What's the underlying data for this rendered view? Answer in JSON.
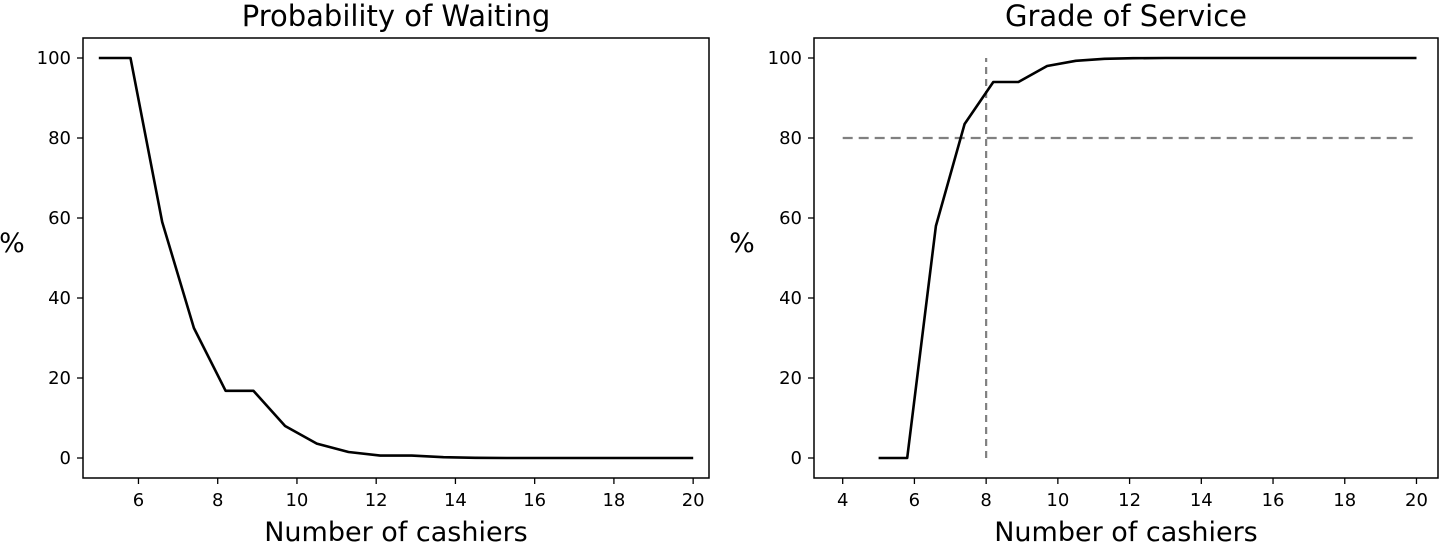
{
  "chart_data": [
    {
      "type": "line",
      "title": "Probability of Waiting",
      "xlabel": "Number of cashiers",
      "ylabel": "%",
      "xlim": [
        4.6,
        20.4
      ],
      "ylim": [
        -5,
        105
      ],
      "xticks": [
        6,
        8,
        10,
        12,
        14,
        16,
        18,
        20
      ],
      "yticks": [
        0,
        20,
        40,
        60,
        80,
        100
      ],
      "grid": false,
      "legend": "none",
      "series": [
        {
          "color": "#000000",
          "x": [
            5,
            5.8,
            6.6,
            7.4,
            8.2,
            8.9,
            9.7,
            10.5,
            11.3,
            12.1,
            12.9,
            13.7,
            14.5,
            15.3,
            16,
            17,
            18,
            19,
            20
          ],
          "y": [
            100,
            100,
            59,
            32.5,
            16.8,
            16.8,
            8,
            3.6,
            1.5,
            0.6,
            0.6,
            0.2,
            0.05,
            0,
            0,
            0,
            0,
            0,
            0
          ]
        }
      ]
    },
    {
      "type": "line",
      "title": "Grade of Service",
      "xlabel": "Number of cashiers",
      "ylabel": "%",
      "xlim": [
        3.2,
        20.6
      ],
      "ylim": [
        -5,
        105
      ],
      "xticks": [
        4,
        6,
        8,
        10,
        12,
        14,
        16,
        18,
        20
      ],
      "yticks": [
        0,
        20,
        40,
        60,
        80,
        100
      ],
      "grid": false,
      "legend": "none",
      "series": [
        {
          "color": "#000000",
          "x": [
            5,
            5.8,
            6.6,
            7.4,
            8.2,
            8.9,
            9.7,
            10.5,
            11.3,
            12.1,
            13,
            14,
            15,
            16,
            17,
            18,
            19,
            20
          ],
          "y": [
            0,
            0,
            58,
            83.5,
            94,
            94,
            98,
            99.3,
            99.8,
            99.95,
            100,
            100,
            100,
            100,
            100,
            100,
            100,
            100
          ]
        }
      ],
      "reference_lines": [
        {
          "orientation": "horizontal",
          "value": 80,
          "from": 4,
          "to": 20,
          "color": "#808080",
          "style": "dashed"
        },
        {
          "orientation": "vertical",
          "value": 8,
          "from": 0,
          "to": 100,
          "color": "#808080",
          "style": "dashed"
        }
      ]
    }
  ]
}
